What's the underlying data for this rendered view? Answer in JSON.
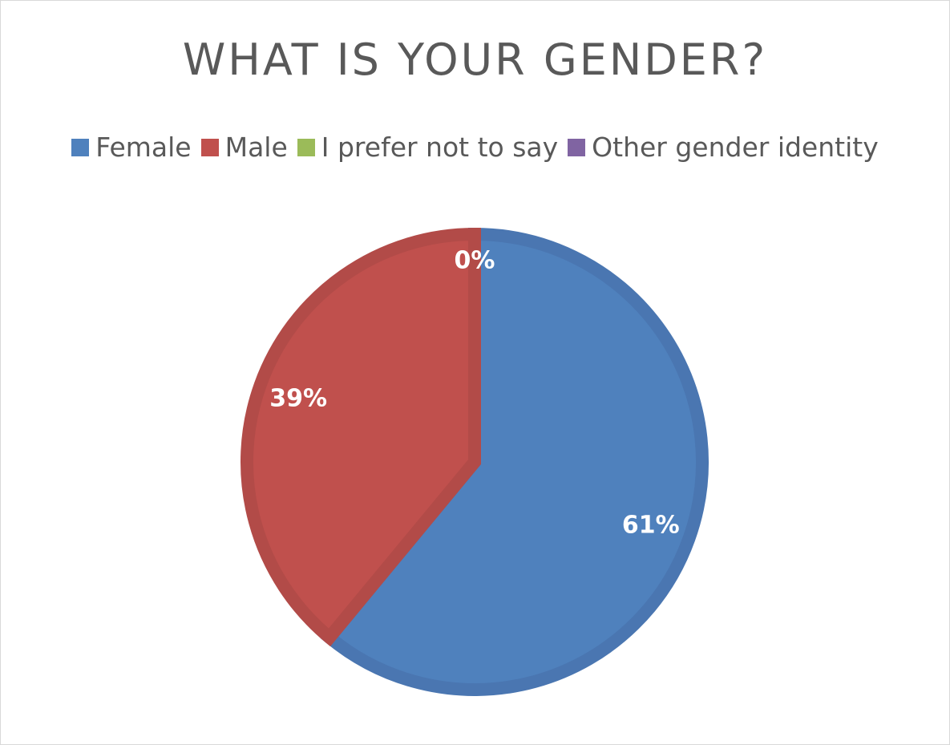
{
  "chart_data": {
    "type": "pie",
    "title": "WHAT IS YOUR GENDER?",
    "legend_position": "top",
    "categories": [
      "Female",
      "Male",
      "I prefer not to say",
      "Other gender identity"
    ],
    "values": [
      61,
      39,
      0,
      0
    ],
    "data_labels": [
      "61%",
      "39%",
      "0%",
      ""
    ],
    "colors": [
      "#4f81bd",
      "#c0504d",
      "#9bbb59",
      "#8064a2"
    ],
    "border_colors": [
      "#4a76b1",
      "#b24b48",
      "#90ad53",
      "#775d96"
    ]
  }
}
